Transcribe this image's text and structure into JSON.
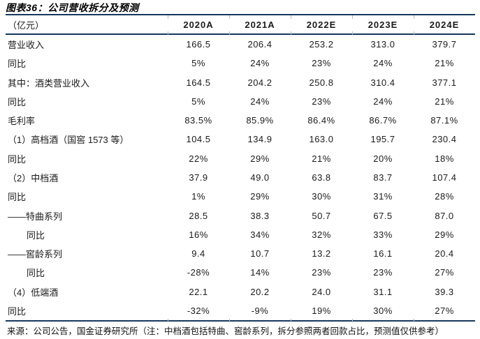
{
  "page": {
    "title": "图表36：公司营收拆分及预测",
    "source": "来源：公司公告，国金证券研究所（注：中档酒包括特曲、窖龄系列，拆分参照两者回款占比，预测值仅供参考）"
  },
  "colors": {
    "rule": "#17375E",
    "tick": "#A8BCD3"
  },
  "table": {
    "unit_header": "（亿元）",
    "columns": [
      "2020A",
      "2021A",
      "2022E",
      "2023E",
      "2024E"
    ],
    "rows": [
      {
        "label": "营业收入",
        "indent": 0,
        "values": [
          "166.5",
          "206.4",
          "253.2",
          "313.0",
          "379.7"
        ]
      },
      {
        "label": "同比",
        "indent": 0,
        "values": [
          "5%",
          "24%",
          "23%",
          "24%",
          "21%"
        ]
      },
      {
        "label": "其中：酒类营业收入",
        "indent": 0,
        "values": [
          "164.5",
          "204.2",
          "250.8",
          "310.4",
          "377.1"
        ]
      },
      {
        "label": "同比",
        "indent": 0,
        "values": [
          "5%",
          "24%",
          "23%",
          "24%",
          "21%"
        ]
      },
      {
        "label": "毛利率",
        "indent": 0,
        "values": [
          "83.5%",
          "85.9%",
          "86.4%",
          "86.7%",
          "87.1%"
        ]
      },
      {
        "label": "（1）高档酒（国窖 1573 等）",
        "indent": 0,
        "values": [
          "104.5",
          "134.9",
          "163.0",
          "195.7",
          "230.4"
        ]
      },
      {
        "label": "同比",
        "indent": 0,
        "values": [
          "22%",
          "29%",
          "21%",
          "20%",
          "18%"
        ]
      },
      {
        "label": "（2）中档酒",
        "indent": 0,
        "values": [
          "37.9",
          "49.0",
          "63.8",
          "83.7",
          "107.4"
        ]
      },
      {
        "label": "同比",
        "indent": 0,
        "values": [
          "1%",
          "29%",
          "30%",
          "31%",
          "28%"
        ]
      },
      {
        "label": "——特曲系列",
        "indent": 0,
        "values": [
          "28.5",
          "38.3",
          "50.7",
          "67.5",
          "87.0"
        ]
      },
      {
        "label": "同比",
        "indent": 1,
        "values": [
          "16%",
          "34%",
          "32%",
          "33%",
          "29%"
        ]
      },
      {
        "label": "——窖龄系列",
        "indent": 0,
        "values": [
          "9.4",
          "10.7",
          "13.2",
          "16.1",
          "20.4"
        ]
      },
      {
        "label": "同比",
        "indent": 1,
        "values": [
          "-28%",
          "14%",
          "23%",
          "23%",
          "27%"
        ]
      },
      {
        "label": "（4）低端酒",
        "indent": 0,
        "values": [
          "22.1",
          "20.2",
          "24.0",
          "31.1",
          "39.3"
        ]
      },
      {
        "label": "同比",
        "indent": 0,
        "values": [
          "-32%",
          "-9%",
          "19%",
          "30%",
          "27%"
        ]
      }
    ]
  },
  "chart_data": {
    "type": "table",
    "title": "图表36：公司营收拆分及预测",
    "unit": "亿元",
    "columns": [
      "2020A",
      "2021A",
      "2022E",
      "2023E",
      "2024E"
    ],
    "rows": [
      {
        "label": "营业收入",
        "values": [
          166.5,
          206.4,
          253.2,
          313.0,
          379.7
        ]
      },
      {
        "label": "同比",
        "values": [
          "5%",
          "24%",
          "23%",
          "24%",
          "21%"
        ]
      },
      {
        "label": "其中：酒类营业收入",
        "values": [
          164.5,
          204.2,
          250.8,
          310.4,
          377.1
        ]
      },
      {
        "label": "同比",
        "values": [
          "5%",
          "24%",
          "23%",
          "24%",
          "21%"
        ]
      },
      {
        "label": "毛利率",
        "values": [
          "83.5%",
          "85.9%",
          "86.4%",
          "86.7%",
          "87.1%"
        ]
      },
      {
        "label": "（1）高档酒（国窖 1573 等）",
        "values": [
          104.5,
          134.9,
          163.0,
          195.7,
          230.4
        ]
      },
      {
        "label": "同比",
        "values": [
          "22%",
          "29%",
          "21%",
          "20%",
          "18%"
        ]
      },
      {
        "label": "（2）中档酒",
        "values": [
          37.9,
          49.0,
          63.8,
          83.7,
          107.4
        ]
      },
      {
        "label": "同比",
        "values": [
          "1%",
          "29%",
          "30%",
          "31%",
          "28%"
        ]
      },
      {
        "label": "——特曲系列",
        "values": [
          28.5,
          38.3,
          50.7,
          67.5,
          87.0
        ]
      },
      {
        "label": "同比",
        "values": [
          "16%",
          "34%",
          "32%",
          "33%",
          "29%"
        ]
      },
      {
        "label": "——窖龄系列",
        "values": [
          9.4,
          10.7,
          13.2,
          16.1,
          20.4
        ]
      },
      {
        "label": "同比",
        "values": [
          "-28%",
          "14%",
          "23%",
          "23%",
          "27%"
        ]
      },
      {
        "label": "（4）低端酒",
        "values": [
          22.1,
          20.2,
          24.0,
          31.1,
          39.3
        ]
      },
      {
        "label": "同比",
        "values": [
          "-32%",
          "-9%",
          "19%",
          "30%",
          "27%"
        ]
      }
    ]
  }
}
